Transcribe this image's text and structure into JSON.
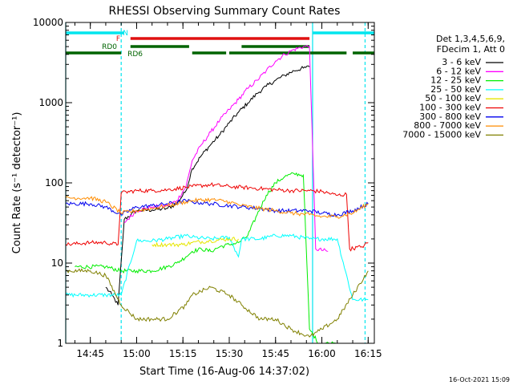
{
  "chart_data": {
    "type": "line",
    "title": "RHESSI Observing Summary Count Rates",
    "xlabel": "Start Time (16-Aug-06 14:37:02)",
    "ylabel": "Count Rate (s⁻¹ detector⁻¹)",
    "y_scale": "log",
    "ylim": [
      1,
      10000
    ],
    "xlim": [
      "14:37:02",
      "16:17:00"
    ],
    "x_ticks": [
      "14:45",
      "15:00",
      "15:15",
      "15:30",
      "15:45",
      "16:00",
      "16:15"
    ],
    "y_ticks": [
      "1",
      "10",
      "100",
      "1000",
      "10000"
    ],
    "grid": false,
    "legend_header": [
      "Det 1,3,4,5,6,9,",
      "FDecim 1, Att 0"
    ],
    "legend_position": "right",
    "footer_date": "16-Oct-2021 15:09",
    "flags": [
      {
        "label": "N",
        "color": "#00e5ee",
        "segments": [
          [
            "14:37:02",
            "14:56:00"
          ],
          [
            "15:57:00",
            "16:17:00"
          ]
        ]
      },
      {
        "label": "F",
        "color": "#e01010",
        "segments": [
          [
            "14:58:00",
            "15:56:00"
          ]
        ]
      },
      {
        "label": "RD0",
        "color": "#006400",
        "segments": [
          [
            "14:58:00",
            "15:17:00"
          ],
          [
            "15:34:00",
            "15:56:00"
          ]
        ]
      },
      {
        "label": "RD6",
        "color": "#006400",
        "segments": [
          [
            "14:37:02",
            "14:55:00"
          ],
          [
            "15:18:00",
            "15:29:00"
          ],
          [
            "15:30:00",
            "16:08:00"
          ],
          [
            "16:10:00",
            "16:17:00"
          ]
        ]
      }
    ],
    "vlines": [
      {
        "x": "14:37:02",
        "style": "solid",
        "color": "#00e5ee"
      },
      {
        "x": "14:55:00",
        "style": "dashed",
        "color": "#00e5ee"
      },
      {
        "x": "15:57:00",
        "style": "solid",
        "color": "#00e5ee"
      },
      {
        "x": "16:14:00",
        "style": "dashed",
        "color": "#00e5ee"
      }
    ],
    "series": [
      {
        "name": "3 - 6 keV",
        "color": "#000000",
        "x": [
          "14:50",
          "14:52",
          "14:54",
          "14:56",
          "15:00",
          "15:05",
          "15:10",
          "15:13",
          "15:16",
          "15:18",
          "15:21",
          "15:24",
          "15:27",
          "15:30",
          "15:33",
          "15:36",
          "15:39",
          "15:42",
          "15:45",
          "15:48",
          "15:51",
          "15:54",
          "15:56"
        ],
        "y": [
          5,
          4,
          3,
          35,
          45,
          46,
          48,
          55,
          80,
          150,
          220,
          300,
          400,
          560,
          760,
          990,
          1300,
          1600,
          1900,
          2200,
          2500,
          2700,
          2800
        ]
      },
      {
        "name": "6 - 12 keV",
        "color": "#ff00ff",
        "x": [
          "14:56",
          "15:00",
          "15:05",
          "15:10",
          "15:13",
          "15:16",
          "15:18",
          "15:21",
          "15:24",
          "15:27",
          "15:30",
          "15:33",
          "15:36",
          "15:39",
          "15:42",
          "15:45",
          "15:48",
          "15:51",
          "15:54",
          "15:56",
          "15:58",
          "16:02"
        ],
        "y": [
          32,
          45,
          50,
          52,
          60,
          90,
          190,
          300,
          430,
          610,
          820,
          1100,
          1500,
          1900,
          2500,
          3300,
          4000,
          4600,
          5000,
          5000,
          15,
          14
        ]
      },
      {
        "name": "12 - 25 keV",
        "color": "#00ee00",
        "x": [
          "14:40",
          "14:50",
          "14:55",
          "15:00",
          "15:05",
          "15:10",
          "15:13",
          "15:16",
          "15:18",
          "15:21",
          "15:24",
          "15:27",
          "15:30",
          "15:33",
          "15:36",
          "15:39",
          "15:42",
          "15:45",
          "15:48",
          "15:51",
          "15:54",
          "15:56",
          "15:59",
          "16:03",
          "16:07"
        ],
        "y": [
          9,
          9,
          8,
          8,
          8,
          9,
          10,
          12,
          14,
          15,
          14,
          16,
          17,
          18,
          22,
          40,
          70,
          100,
          120,
          130,
          125,
          1.5,
          1,
          1,
          1
        ]
      },
      {
        "name": "25 - 50 keV",
        "color": "#00ffff",
        "x": [
          "14:37:02",
          "14:45",
          "14:50",
          "14:55",
          "15:00",
          "15:05",
          "15:10",
          "15:16",
          "15:18",
          "15:24",
          "15:30",
          "15:33",
          "15:34",
          "15:40",
          "15:45",
          "15:50",
          "15:56",
          "15:58",
          "16:05",
          "16:10",
          "16:15"
        ],
        "y": [
          4,
          4,
          4,
          4,
          19,
          19,
          20,
          22,
          21,
          20,
          21,
          12,
          20,
          20,
          22,
          22,
          20,
          20,
          20,
          3.5,
          3.5
        ]
      },
      {
        "name": "50 - 100 keV",
        "color": "#e6e600",
        "x": [
          "15:05",
          "15:10",
          "15:15",
          "15:18",
          "15:24",
          "15:30",
          "15:33"
        ],
        "y": [
          17,
          17,
          17,
          18,
          19,
          20,
          20
        ]
      },
      {
        "name": "100 - 300 keV",
        "color": "#ee0000",
        "x": [
          "14:37:02",
          "14:45",
          "14:50",
          "14:54",
          "14:55",
          "15:00",
          "15:05",
          "15:10",
          "15:16",
          "15:18",
          "15:24",
          "15:30",
          "15:34",
          "15:40",
          "15:45",
          "15:50",
          "15:56",
          "16:00",
          "16:05",
          "16:08",
          "16:09",
          "16:13",
          "16:15"
        ],
        "y": [
          17,
          18,
          18,
          17,
          75,
          80,
          80,
          82,
          88,
          90,
          95,
          90,
          88,
          85,
          82,
          80,
          80,
          78,
          70,
          72,
          15,
          16,
          18
        ]
      },
      {
        "name": "300 - 800 keV",
        "color": "#0000ee",
        "x": [
          "14:37:02",
          "14:45",
          "14:50",
          "14:55",
          "15:00",
          "15:05",
          "15:10",
          "15:16",
          "15:18",
          "15:24",
          "15:30",
          "15:34",
          "15:40",
          "15:45",
          "15:50",
          "15:56",
          "16:00",
          "16:05",
          "16:10",
          "16:15"
        ],
        "y": [
          55,
          55,
          50,
          40,
          50,
          52,
          55,
          60,
          58,
          55,
          52,
          50,
          48,
          45,
          45,
          45,
          42,
          40,
          45,
          55
        ]
      },
      {
        "name": "800 - 7000 keV",
        "color": "#ff8c00",
        "x": [
          "14:37:02",
          "14:45",
          "14:50",
          "14:55",
          "15:00",
          "15:05",
          "15:10",
          "15:16",
          "15:18",
          "15:24",
          "15:30",
          "15:34",
          "15:40",
          "15:45",
          "15:50",
          "15:56",
          "16:00",
          "16:05",
          "16:10",
          "16:15"
        ],
        "y": [
          65,
          65,
          58,
          42,
          45,
          48,
          52,
          58,
          60,
          62,
          58,
          52,
          48,
          45,
          42,
          40,
          38,
          38,
          42,
          55
        ]
      },
      {
        "name": "7000 - 15000 keV",
        "color": "#808000",
        "x": [
          "14:37:02",
          "14:45",
          "14:50",
          "14:55",
          "15:00",
          "15:05",
          "15:10",
          "15:16",
          "15:18",
          "15:24",
          "15:30",
          "15:34",
          "15:40",
          "15:45",
          "15:50",
          "15:56",
          "16:00",
          "16:05",
          "16:10",
          "16:15"
        ],
        "y": [
          8,
          8,
          7,
          3,
          2,
          2,
          2,
          3,
          4,
          5,
          4,
          3,
          2,
          2,
          1.5,
          1.2,
          1.5,
          2,
          4,
          8
        ]
      }
    ]
  }
}
